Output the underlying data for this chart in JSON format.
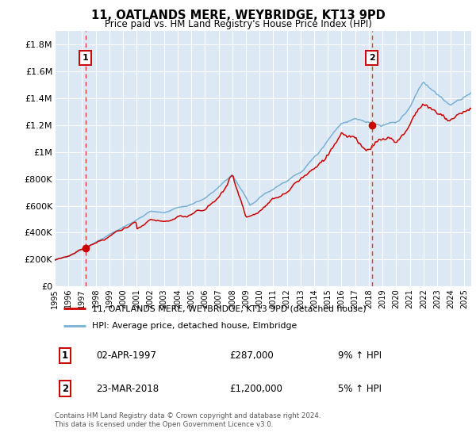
{
  "title": "11, OATLANDS MERE, WEYBRIDGE, KT13 9PD",
  "subtitle": "Price paid vs. HM Land Registry's House Price Index (HPI)",
  "legend_line1": "11, OATLANDS MERE, WEYBRIDGE, KT13 9PD (detached house)",
  "legend_line2": "HPI: Average price, detached house, Elmbridge",
  "annotation1_label": "1",
  "annotation1_date": "02-APR-1997",
  "annotation1_price": "£287,000",
  "annotation1_hpi": "9% ↑ HPI",
  "annotation2_label": "2",
  "annotation2_date": "23-MAR-2018",
  "annotation2_price": "£1,200,000",
  "annotation2_hpi": "5% ↑ HPI",
  "footer": "Contains HM Land Registry data © Crown copyright and database right 2024.\nThis data is licensed under the Open Government Licence v3.0.",
  "ylim": [
    0,
    1900000
  ],
  "yticks": [
    0,
    200000,
    400000,
    600000,
    800000,
    1000000,
    1200000,
    1400000,
    1600000,
    1800000
  ],
  "ytick_labels": [
    "£0",
    "£200K",
    "£400K",
    "£600K",
    "£800K",
    "£1M",
    "£1.2M",
    "£1.4M",
    "£1.6M",
    "£1.8M"
  ],
  "red_color": "#cc0000",
  "blue_color": "#7ab0d4",
  "bg_color": "#dce9f5",
  "grid_color": "#ffffff",
  "dashed_color": "#ee3333",
  "marker1_year": 1997.25,
  "marker2_year": 2018.22,
  "marker1_value": 287000,
  "marker2_value": 1200000,
  "xmin": 1995.0,
  "xmax": 2025.5
}
